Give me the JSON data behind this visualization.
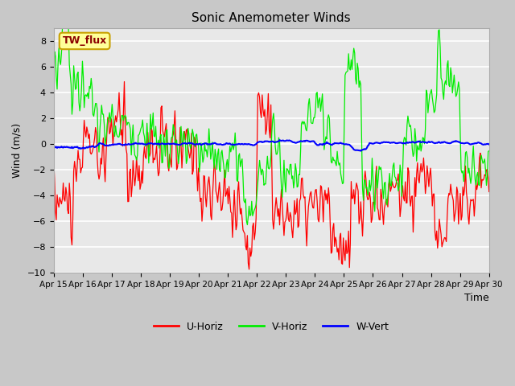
{
  "title": "Sonic Anemometer Winds",
  "xlabel": "Time",
  "ylabel": "Wind (m/s)",
  "ylim": [
    -10,
    9
  ],
  "yticks": [
    -10,
    -8,
    -6,
    -4,
    -2,
    0,
    2,
    4,
    6,
    8
  ],
  "x_tick_labels": [
    "Apr 15",
    "Apr 16",
    "Apr 17",
    "Apr 18",
    "Apr 19",
    "Apr 20",
    "Apr 21",
    "Apr 22",
    "Apr 23",
    "Apr 24",
    "Apr 25",
    "Apr 26",
    "Apr 27",
    "Apr 28",
    "Apr 29",
    "Apr 30"
  ],
  "color_u": "#ff0000",
  "color_v": "#00ee00",
  "color_w": "#0000ff",
  "fig_facecolor": "#c8c8c8",
  "plot_facecolor": "#e8e8e8",
  "grid_color": "#ffffff",
  "label_box_facecolor": "#ffff99",
  "label_box_edgecolor": "#c8a000",
  "label_text": "TW_flux",
  "label_text_color": "#8b0000",
  "legend_labels": [
    "U-Horiz",
    "V-Horiz",
    "W-Vert"
  ],
  "n_points": 500,
  "seed": 42
}
